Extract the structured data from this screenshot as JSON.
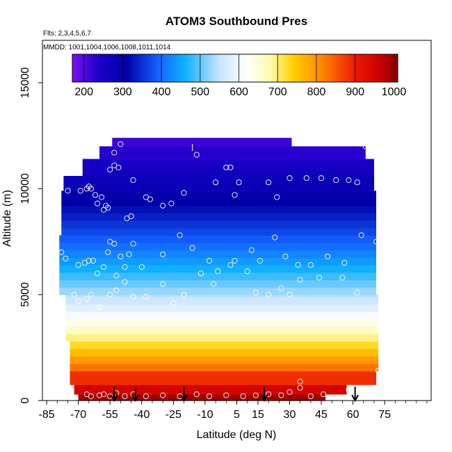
{
  "chart_data": {
    "type": "heatmap",
    "title": "ATOM3 Southbound Pres",
    "subtitle_flights": "Flts: 2,3,4,5,6,7",
    "subtitle_dates": "MMDD: 1001,1004,1006,1008,1011,1014",
    "xlabel": "Latitude (deg N)",
    "ylabel": "Altitude (m)",
    "xlim": [
      -87,
      97
    ],
    "ylim": [
      0,
      17000
    ],
    "x_ticks": [
      -85,
      -70,
      -55,
      -40,
      -25,
      -10,
      5,
      15,
      30,
      45,
      60,
      75
    ],
    "x_tick_labels": [
      "-85",
      "-70",
      "-55",
      "-40",
      "-25",
      "-10",
      "5",
      "15",
      "30",
      "45",
      "60",
      "75"
    ],
    "y_ticks": [
      0,
      5000,
      10000,
      15000
    ],
    "y_tick_labels": [
      "0",
      "5000",
      "10000",
      "15000"
    ],
    "colorbar": {
      "label_values": [
        200,
        300,
        400,
        500,
        600,
        700,
        800,
        900,
        1000
      ],
      "labels": [
        "200",
        "300",
        "400",
        "500",
        "600",
        "700",
        "800",
        "900",
        "1000"
      ],
      "range": [
        170,
        1010
      ],
      "stops": [
        {
          "v": 170,
          "c": "#7a10f0"
        },
        {
          "v": 240,
          "c": "#1a00c8"
        },
        {
          "v": 310,
          "c": "#0000a8"
        },
        {
          "v": 390,
          "c": "#1560ff"
        },
        {
          "v": 460,
          "c": "#10b0ff"
        },
        {
          "v": 550,
          "c": "#c8e4ff"
        },
        {
          "v": 620,
          "c": "#ffffff"
        },
        {
          "v": 680,
          "c": "#fffab0"
        },
        {
          "v": 740,
          "c": "#ffd000"
        },
        {
          "v": 820,
          "c": "#ff8000"
        },
        {
          "v": 900,
          "c": "#ee1a00"
        },
        {
          "v": 960,
          "c": "#cc0000"
        },
        {
          "v": 1010,
          "c": "#8a0000"
        }
      ]
    },
    "curtain_extent": [
      {
        "z0": 0,
        "z1": 300,
        "lat0": -70,
        "lat1": 47
      },
      {
        "z0": 300,
        "z1": 750,
        "lat0": -72,
        "lat1": 57
      },
      {
        "z0": 750,
        "z1": 1400,
        "lat0": -74,
        "lat1": 71
      },
      {
        "z0": 1400,
        "z1": 2800,
        "lat0": -74,
        "lat1": 72
      },
      {
        "z0": 2800,
        "z1": 5000,
        "lat0": -76,
        "lat1": 72
      },
      {
        "z0": 5000,
        "z1": 7800,
        "lat0": -79,
        "lat1": 71
      },
      {
        "z0": 7800,
        "z1": 9900,
        "lat0": -78,
        "lat1": 71
      },
      {
        "z0": 9900,
        "z1": 10600,
        "lat0": -77,
        "lat1": 70
      },
      {
        "z0": 10600,
        "z1": 11400,
        "lat0": -68,
        "lat1": 70
      },
      {
        "z0": 11400,
        "z1": 12000,
        "lat0": -60,
        "lat1": 66
      },
      {
        "z0": 12000,
        "z1": 12400,
        "lat0": -54,
        "lat1": 31
      }
    ],
    "observations": [
      {
        "lat": -75,
        "alt": 9900
      },
      {
        "lat": -69,
        "alt": 9900
      },
      {
        "lat": -66,
        "alt": 10000
      },
      {
        "lat": -65,
        "alt": 10100
      },
      {
        "lat": -64,
        "alt": 10000
      },
      {
        "lat": -62,
        "alt": 9700
      },
      {
        "lat": -61,
        "alt": 9300
      },
      {
        "lat": -59,
        "alt": 9600
      },
      {
        "lat": -58,
        "alt": 9000
      },
      {
        "lat": -57,
        "alt": 9200
      },
      {
        "lat": -56,
        "alt": 9100
      },
      {
        "lat": -55,
        "alt": 10900
      },
      {
        "lat": -53,
        "alt": 11100
      },
      {
        "lat": -51,
        "alt": 11000
      },
      {
        "lat": -53,
        "alt": 11700
      },
      {
        "lat": -50,
        "alt": 12100
      },
      {
        "lat": -47,
        "alt": 8600
      },
      {
        "lat": -45,
        "alt": 8700
      },
      {
        "lat": -44,
        "alt": 10400
      },
      {
        "lat": -38,
        "alt": 9600
      },
      {
        "lat": -36,
        "alt": 9500
      },
      {
        "lat": -30,
        "alt": 9200
      },
      {
        "lat": -26,
        "alt": 9300
      },
      {
        "lat": -20,
        "alt": 9800
      },
      {
        "lat": -14,
        "alt": 11600
      },
      {
        "lat": -5,
        "alt": 10300
      },
      {
        "lat": 0,
        "alt": 11000
      },
      {
        "lat": 2,
        "alt": 11000
      },
      {
        "lat": 4,
        "alt": 9700
      },
      {
        "lat": 6,
        "alt": 10300
      },
      {
        "lat": 20,
        "alt": 10300
      },
      {
        "lat": 24,
        "alt": 9600
      },
      {
        "lat": 30,
        "alt": 10500
      },
      {
        "lat": 38,
        "alt": 10500
      },
      {
        "lat": 45,
        "alt": 10500
      },
      {
        "lat": 52,
        "alt": 10400
      },
      {
        "lat": 58,
        "alt": 10400
      },
      {
        "lat": 62,
        "alt": 10300
      },
      {
        "lat": 66,
        "alt": 12000
      },
      {
        "lat": 68,
        "alt": 11900
      },
      {
        "lat": -78,
        "alt": 7000
      },
      {
        "lat": -76,
        "alt": 6700
      },
      {
        "lat": -70,
        "alt": 6400
      },
      {
        "lat": -67,
        "alt": 6500
      },
      {
        "lat": -65,
        "alt": 6600
      },
      {
        "lat": -63,
        "alt": 6600
      },
      {
        "lat": -61,
        "alt": 6000
      },
      {
        "lat": -58,
        "alt": 6300
      },
      {
        "lat": -56,
        "alt": 7000
      },
      {
        "lat": -55,
        "alt": 7500
      },
      {
        "lat": -53,
        "alt": 7400
      },
      {
        "lat": -52,
        "alt": 5900
      },
      {
        "lat": -50,
        "alt": 6800
      },
      {
        "lat": -48,
        "alt": 6300
      },
      {
        "lat": -46,
        "alt": 6900
      },
      {
        "lat": -44,
        "alt": 7400
      },
      {
        "lat": -40,
        "alt": 6300
      },
      {
        "lat": -30,
        "alt": 6900
      },
      {
        "lat": -22,
        "alt": 7800
      },
      {
        "lat": -16,
        "alt": 7200
      },
      {
        "lat": -8,
        "alt": 6600
      },
      {
        "lat": -4,
        "alt": 6100
      },
      {
        "lat": 2,
        "alt": 6400
      },
      {
        "lat": 4,
        "alt": 6600
      },
      {
        "lat": 12,
        "alt": 7100
      },
      {
        "lat": 16,
        "alt": 6600
      },
      {
        "lat": 23,
        "alt": 7700
      },
      {
        "lat": 28,
        "alt": 6800
      },
      {
        "lat": 34,
        "alt": 6400
      },
      {
        "lat": 40,
        "alt": 6400
      },
      {
        "lat": 48,
        "alt": 6800
      },
      {
        "lat": 56,
        "alt": 6500
      },
      {
        "lat": 64,
        "alt": 7800
      },
      {
        "lat": 71,
        "alt": 7500
      },
      {
        "lat": -72,
        "alt": 5000
      },
      {
        "lat": -70,
        "alt": 4700
      },
      {
        "lat": -66,
        "alt": 4800
      },
      {
        "lat": -64,
        "alt": 5000
      },
      {
        "lat": -60,
        "alt": 4400
      },
      {
        "lat": -55,
        "alt": 5000
      },
      {
        "lat": -52,
        "alt": 5200
      },
      {
        "lat": -48,
        "alt": 5600
      },
      {
        "lat": -44,
        "alt": 4900
      },
      {
        "lat": -38,
        "alt": 4900
      },
      {
        "lat": -30,
        "alt": 5500
      },
      {
        "lat": -25,
        "alt": 4600
      },
      {
        "lat": -20,
        "alt": 5000
      },
      {
        "lat": -12,
        "alt": 6000
      },
      {
        "lat": -6,
        "alt": 5500
      },
      {
        "lat": 10,
        "alt": 6100
      },
      {
        "lat": 14,
        "alt": 5100
      },
      {
        "lat": 20,
        "alt": 5000
      },
      {
        "lat": 26,
        "alt": 5300
      },
      {
        "lat": 30,
        "alt": 5000
      },
      {
        "lat": 35,
        "alt": 5700
      },
      {
        "lat": 44,
        "alt": 5800
      },
      {
        "lat": 55,
        "alt": 5800
      },
      {
        "lat": 62,
        "alt": 5100
      },
      {
        "lat": -66,
        "alt": 300
      },
      {
        "lat": -64,
        "alt": 200
      },
      {
        "lat": -60,
        "alt": 250
      },
      {
        "lat": -58,
        "alt": 300
      },
      {
        "lat": -55,
        "alt": 200
      },
      {
        "lat": -52,
        "alt": 350
      },
      {
        "lat": -48,
        "alt": 200
      },
      {
        "lat": -44,
        "alt": 300
      },
      {
        "lat": -38,
        "alt": 200
      },
      {
        "lat": -30,
        "alt": 250
      },
      {
        "lat": -22,
        "alt": 200
      },
      {
        "lat": -14,
        "alt": 300
      },
      {
        "lat": -8,
        "alt": 200
      },
      {
        "lat": 0,
        "alt": 250
      },
      {
        "lat": 8,
        "alt": 200
      },
      {
        "lat": 14,
        "alt": 250
      },
      {
        "lat": 20,
        "alt": 300
      },
      {
        "lat": 26,
        "alt": 250
      },
      {
        "lat": 30,
        "alt": 400
      },
      {
        "lat": 35,
        "alt": 900
      },
      {
        "lat": 35,
        "alt": 600
      },
      {
        "lat": 40,
        "alt": 200
      },
      {
        "lat": 46,
        "alt": 300
      },
      {
        "lat": 58,
        "alt": 500
      },
      {
        "lat": 72,
        "alt": 1400
      }
    ],
    "arrow_markers_lat": [
      -53,
      -43,
      -20,
      18,
      61
    ],
    "top_tick_marker_lat": -16
  }
}
